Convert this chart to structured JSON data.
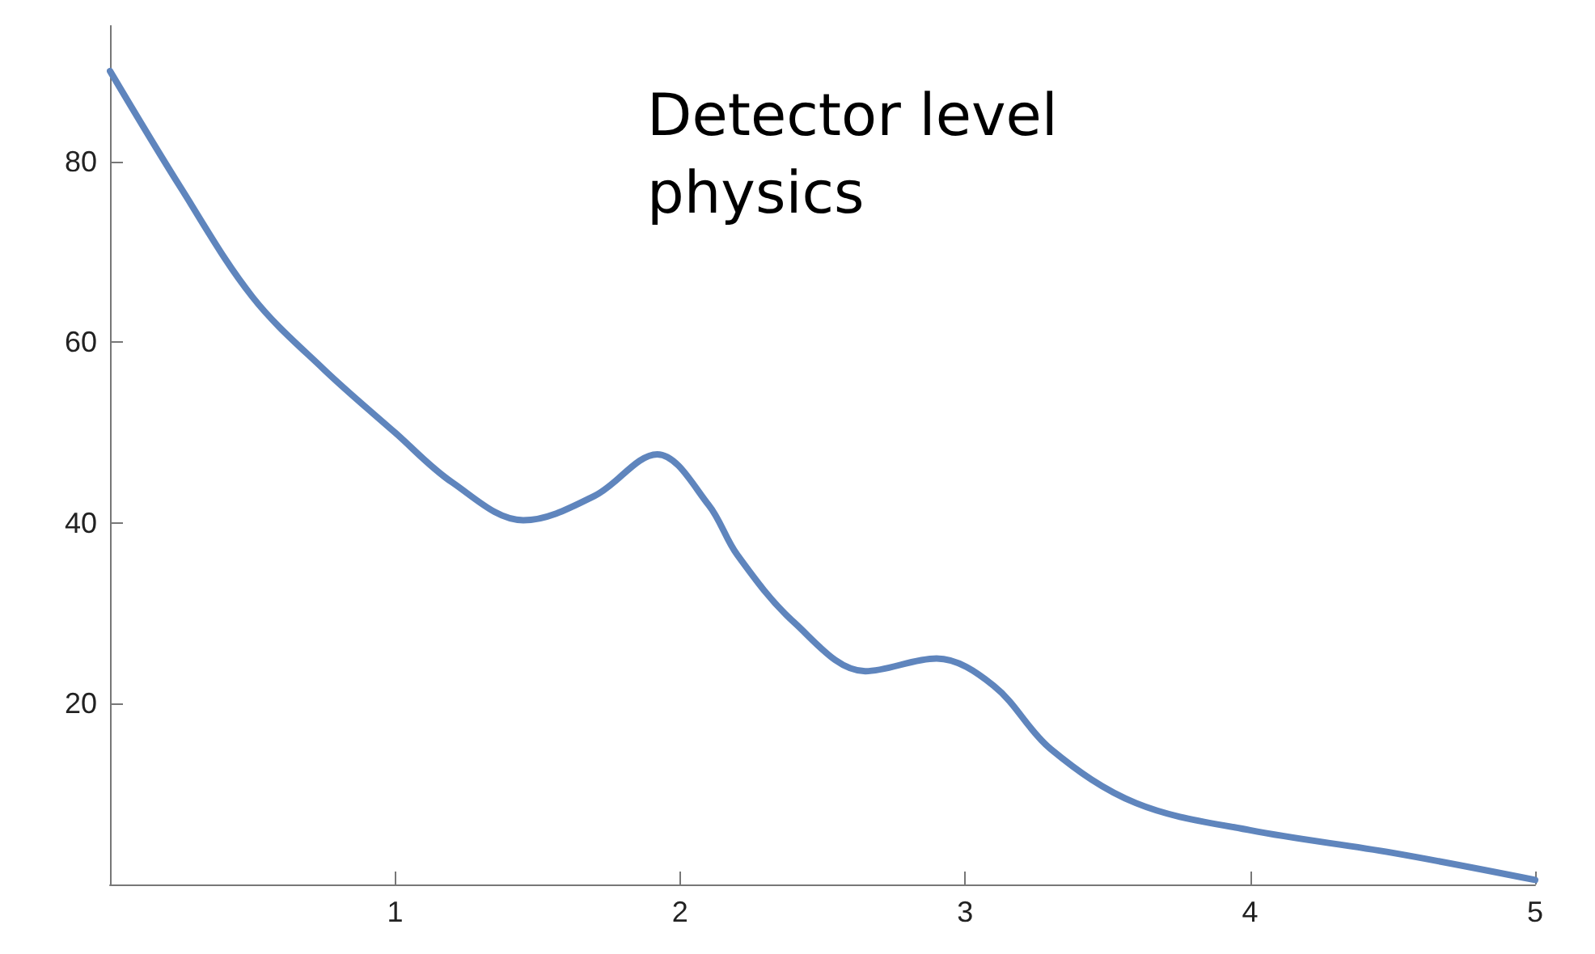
{
  "chart_data": {
    "type": "line",
    "annotations": [
      "Detector level\nphysics"
    ],
    "x": [
      0,
      0.25,
      0.5,
      0.75,
      1,
      1.2,
      1.45,
      1.7,
      1.92,
      2.1,
      2.2,
      2.4,
      2.65,
      2.9,
      3.1,
      3.3,
      3.6,
      4,
      4.5,
      5
    ],
    "series": [
      {
        "color": "#5f85bd",
        "values": [
          90,
          77,
          65,
          57,
          50,
          44.5,
          40.3,
          43,
          47.6,
          42,
          36.5,
          29,
          23.6,
          25,
          22,
          15,
          9,
          6,
          3.5,
          0.5
        ]
      }
    ],
    "xlim": [
      0,
      5
    ],
    "xticks": [
      1,
      2,
      3,
      4,
      5
    ],
    "ylim": [
      0,
      95
    ],
    "yticks": [
      20,
      40,
      60,
      80
    ],
    "marker": "none",
    "line_style": "solid"
  }
}
